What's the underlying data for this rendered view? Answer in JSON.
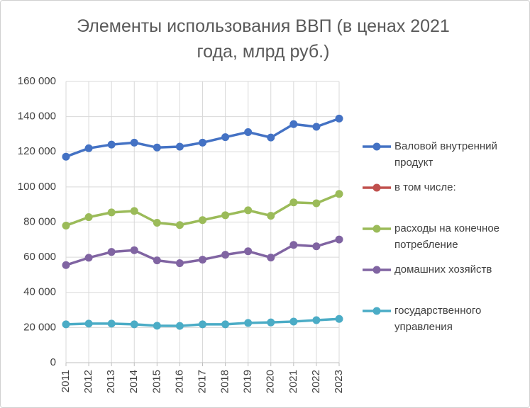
{
  "chart_data": {
    "type": "line",
    "title": "Элементы использования ВВП (в ценах 2021 года, млрд руб.)",
    "categories": [
      "2011",
      "2012",
      "2013",
      "2014",
      "2015",
      "2016",
      "2017",
      "2018",
      "2019",
      "2020",
      "2021",
      "2022",
      "2023"
    ],
    "series": [
      {
        "name": "Валовой внутренний продукт",
        "color": "#4472c4",
        "values": [
          117200,
          122000,
          124100,
          125200,
          122400,
          122900,
          125200,
          128300,
          131200,
          128100,
          135700,
          134200,
          138900
        ]
      },
      {
        "name": "в том числе:",
        "color": "#c0504d",
        "values": [
          null,
          null,
          null,
          null,
          null,
          null,
          null,
          null,
          null,
          null,
          null,
          null,
          null
        ]
      },
      {
        "name": "расходы на конечное потребление",
        "color": "#9bbb59",
        "values": [
          78000,
          82800,
          85500,
          86300,
          79600,
          78300,
          81100,
          83900,
          86700,
          83600,
          91200,
          90700,
          96000
        ]
      },
      {
        "name": "домашних хозяйств",
        "color": "#8064a2",
        "values": [
          55500,
          59700,
          63000,
          64000,
          58200,
          56600,
          58600,
          61400,
          63400,
          59800,
          67000,
          66200,
          70100
        ]
      },
      {
        "name": "государственного управления",
        "color": "#4bacc6",
        "values": [
          21800,
          22200,
          22200,
          21800,
          21000,
          20900,
          21800,
          21800,
          22600,
          22900,
          23400,
          24200,
          24900
        ]
      }
    ],
    "ylim": [
      0,
      160000
    ],
    "yticks": [
      0,
      {
        "value": 20000,
        "label": "20 000"
      },
      {
        "value": 40000,
        "label": "40 000"
      },
      {
        "value": 60000,
        "label": "60 000"
      },
      {
        "value": 80000,
        "label": "80 000"
      },
      {
        "value": 100000,
        "label": "100 000"
      },
      {
        "value": 120000,
        "label": "120 000"
      },
      {
        "value": 140000,
        "label": "140 000"
      },
      {
        "value": 160000,
        "label": "160 000"
      }
    ],
    "grid": true,
    "legend": "right"
  }
}
